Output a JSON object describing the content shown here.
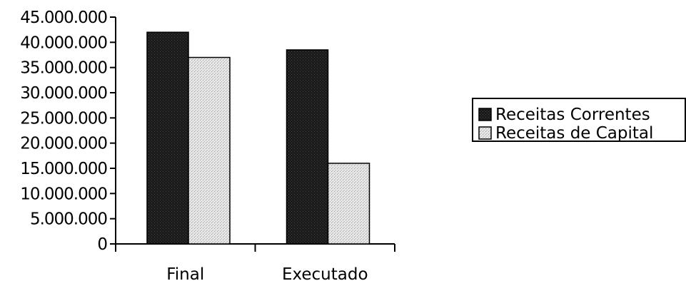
{
  "chart_data": {
    "type": "bar",
    "categories": [
      "Final",
      "Executado"
    ],
    "series": [
      {
        "name": "Receitas Correntes",
        "values": [
          42000000,
          38500000
        ],
        "color": "#1a1a1a"
      },
      {
        "name": "Receitas de Capital",
        "values": [
          37000000,
          16000000
        ],
        "color": "#d9d9d9"
      }
    ],
    "y_ticks": [
      0,
      5000000,
      10000000,
      15000000,
      20000000,
      25000000,
      30000000,
      35000000,
      40000000,
      45000000
    ],
    "y_tick_labels": [
      "0",
      "5.000.000",
      "10.000.000",
      "15.000.000",
      "20.000.000",
      "25.000.000",
      "30.000.000",
      "35.000.000",
      "40.000.000",
      "45.000.000"
    ],
    "ylim": [
      0,
      45000000
    ],
    "grid": false,
    "legend_position": "right",
    "title": "",
    "xlabel": "",
    "ylabel": ""
  }
}
